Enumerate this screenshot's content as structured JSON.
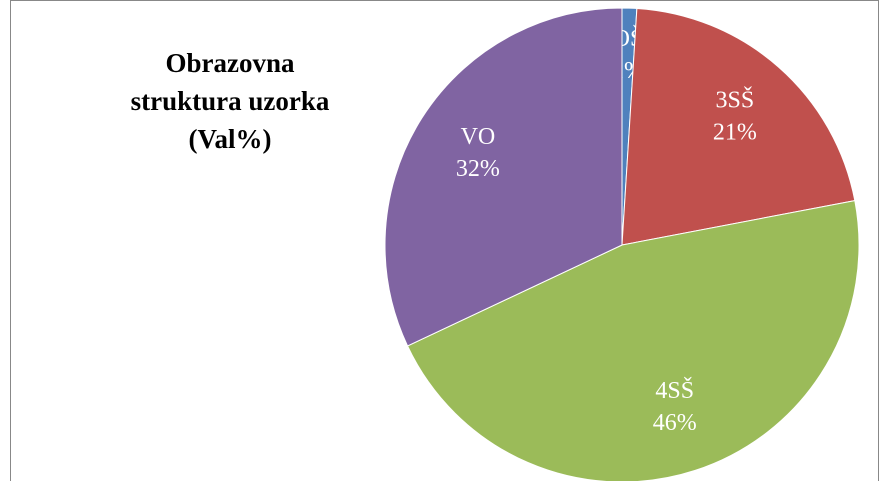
{
  "chart_data": {
    "type": "pie",
    "title": "Obrazovna struktura uzorka (Val%)",
    "categories": [
      "OŠ",
      "3SŠ",
      "4SŠ",
      "VO"
    ],
    "values": [
      1,
      21,
      46,
      32
    ],
    "value_labels": [
      "1%",
      "21%",
      "46%",
      "32%"
    ],
    "colors": [
      "#4f81bd",
      "#c0504d",
      "#9bbb59",
      "#8064a2"
    ]
  }
}
